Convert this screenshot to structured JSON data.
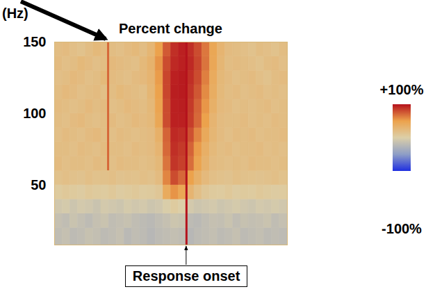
{
  "chart_data": {
    "type": "heatmap",
    "title": "Percent change",
    "y_label": "(Hz)",
    "ylim": [
      8,
      150
    ],
    "yticks": [
      50,
      100,
      150
    ],
    "xlim": [
      0,
      30
    ],
    "tick_labels": "y",
    "cells": {
      "x_bins": [
        0,
        1,
        2,
        3,
        4,
        5,
        6,
        7,
        8,
        9,
        10,
        11,
        12,
        13,
        14,
        15,
        16,
        17,
        18,
        19,
        20,
        21,
        22,
        23,
        24,
        25,
        26,
        27,
        28,
        29,
        30
      ],
      "y_bins": [
        8,
        20,
        30,
        40,
        50,
        60,
        70,
        80,
        90,
        100,
        110,
        120,
        130,
        140,
        150
      ],
      "values": [
        [
          -18,
          -15,
          -20,
          -18,
          -14,
          -16,
          -20,
          -18,
          -15,
          -22,
          -18,
          -20,
          -24,
          -20,
          -18,
          -16,
          -18,
          -24,
          -20,
          -18,
          -16,
          -20,
          -18,
          -15,
          -20,
          -18,
          -16,
          -20,
          -18,
          -20
        ],
        [
          -15,
          -18,
          -12,
          -16,
          -20,
          -15,
          -12,
          -18,
          -16,
          -14,
          -18,
          -20,
          -22,
          -18,
          -15,
          -10,
          -12,
          -20,
          -22,
          -18,
          -15,
          -16,
          -12,
          -18,
          -14,
          -16,
          -15,
          -12,
          -18,
          -15
        ],
        [
          -8,
          -5,
          -10,
          -6,
          -8,
          -12,
          -6,
          -8,
          -10,
          -5,
          -8,
          -6,
          -10,
          -8,
          -2,
          5,
          0,
          -6,
          -10,
          -8,
          -6,
          -10,
          -8,
          -5,
          -8,
          -10,
          -6,
          -8,
          -5,
          -8
        ],
        [
          5,
          8,
          6,
          4,
          8,
          6,
          5,
          8,
          4,
          6,
          8,
          5,
          6,
          10,
          40,
          55,
          45,
          30,
          18,
          10,
          6,
          5,
          8,
          4,
          6,
          5,
          8,
          6,
          4,
          5
        ],
        [
          15,
          18,
          16,
          14,
          18,
          15,
          16,
          18,
          14,
          16,
          15,
          18,
          16,
          22,
          60,
          80,
          70,
          50,
          35,
          24,
          18,
          16,
          14,
          18,
          16,
          15,
          14,
          16,
          18,
          15
        ],
        [
          22,
          18,
          20,
          20,
          18,
          22,
          20,
          18,
          22,
          20,
          20,
          18,
          20,
          26,
          66,
          88,
          84,
          68,
          48,
          32,
          22,
          20,
          18,
          20,
          18,
          22,
          20,
          20,
          18,
          20
        ],
        [
          20,
          20,
          18,
          22,
          20,
          18,
          22,
          20,
          20,
          18,
          22,
          20,
          22,
          30,
          70,
          90,
          86,
          72,
          52,
          36,
          25,
          20,
          22,
          18,
          20,
          20,
          22,
          18,
          20,
          18
        ],
        [
          18,
          22,
          20,
          18,
          22,
          24,
          20,
          18,
          22,
          20,
          18,
          20,
          22,
          35,
          72,
          92,
          90,
          78,
          60,
          42,
          28,
          22,
          18,
          22,
          20,
          22,
          18,
          20,
          20,
          22
        ],
        [
          20,
          18,
          22,
          24,
          20,
          18,
          20,
          22,
          18,
          20,
          24,
          22,
          25,
          45,
          80,
          95,
          95,
          85,
          70,
          50,
          30,
          22,
          20,
          20,
          22,
          18,
          20,
          18,
          22,
          20
        ],
        [
          22,
          20,
          18,
          20,
          24,
          20,
          22,
          18,
          20,
          24,
          22,
          20,
          26,
          48,
          80,
          95,
          96,
          86,
          72,
          54,
          35,
          24,
          22,
          18,
          20,
          18,
          20,
          22,
          18,
          20
        ],
        [
          20,
          24,
          22,
          18,
          20,
          22,
          18,
          20,
          25,
          22,
          20,
          18,
          28,
          50,
          82,
          96,
          97,
          88,
          76,
          58,
          38,
          25,
          20,
          22,
          18,
          20,
          22,
          18,
          20,
          18
        ],
        [
          18,
          20,
          24,
          22,
          18,
          20,
          25,
          22,
          20,
          18,
          22,
          24,
          30,
          52,
          82,
          95,
          97,
          90,
          80,
          62,
          40,
          26,
          22,
          18,
          20,
          22,
          18,
          15,
          20,
          22
        ],
        [
          22,
          18,
          20,
          25,
          22,
          18,
          20,
          24,
          22,
          20,
          18,
          25,
          32,
          55,
          80,
          92,
          95,
          92,
          82,
          66,
          44,
          28,
          20,
          22,
          20,
          18,
          15,
          20,
          22,
          18
        ],
        [
          20,
          22,
          18,
          15,
          20,
          25,
          22,
          20,
          18,
          22,
          25,
          20,
          28,
          50,
          75,
          90,
          95,
          90,
          80,
          65,
          45,
          30,
          22,
          20,
          18,
          15,
          20,
          18,
          15,
          20
        ]
      ]
    },
    "colorbar": {
      "range": [
        -100,
        100
      ],
      "ticks": [
        {
          "value": -100,
          "label": "-100%"
        },
        {
          "value": 100,
          "label": "+100%"
        }
      ]
    },
    "events": [
      {
        "x": 6.9,
        "value": 70,
        "y_range": [
          60,
          150
        ]
      },
      {
        "x": 17,
        "value": 100,
        "y_range": [
          8,
          150
        ],
        "label": "Response onset"
      }
    ]
  }
}
